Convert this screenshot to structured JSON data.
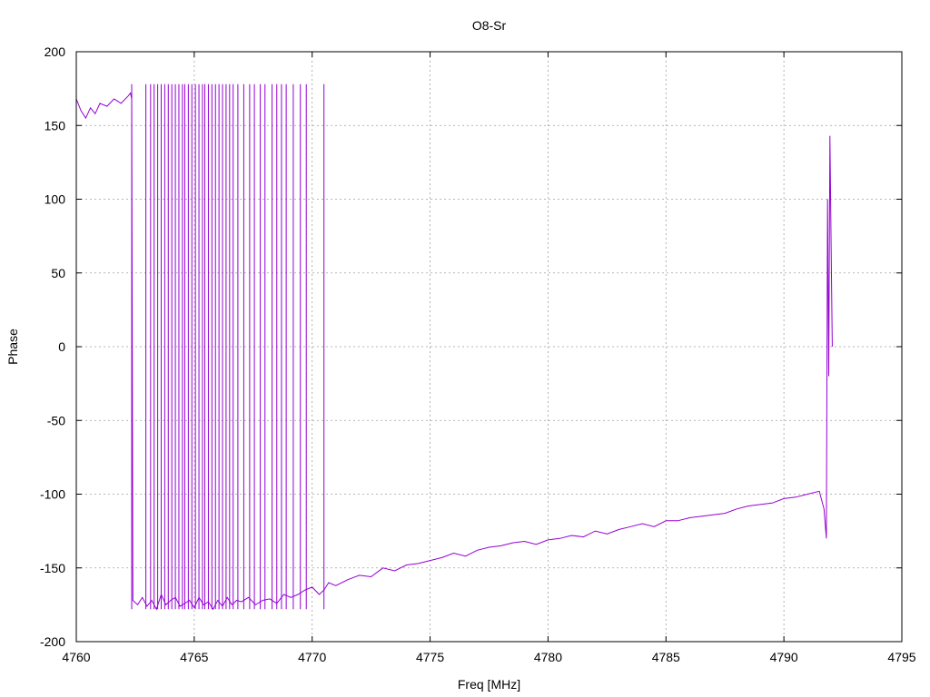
{
  "chart_data": {
    "type": "line",
    "title": "O8-Sr",
    "xlabel": "Freq [MHz]",
    "ylabel": "Phase",
    "xlim": [
      4760,
      4795
    ],
    "ylim": [
      -200,
      200
    ],
    "xticks": [
      4760,
      4765,
      4770,
      4775,
      4780,
      4785,
      4790,
      4795
    ],
    "yticks": [
      -200,
      -150,
      -100,
      -50,
      0,
      50,
      100,
      150,
      200
    ],
    "xtick_labels": [
      "4760",
      "4765",
      "4770",
      "4775",
      "4780",
      "4785",
      "4790",
      "4795"
    ],
    "ytick_labels": [
      "-200",
      "-150",
      "-100",
      "-50",
      "0",
      "50",
      "100",
      "150",
      "200"
    ],
    "grid": true,
    "series": [
      {
        "color": "#9400d3",
        "x": [
          4760.0,
          4760.2,
          4760.4,
          4760.6,
          4760.8,
          4761.0,
          4761.3,
          4761.6,
          4761.9,
          4762.2,
          4762.3,
          4762.35,
          4762.4,
          4762.6,
          4762.8,
          4763.0,
          4763.2,
          4763.4,
          4763.6,
          4763.8,
          4764.0,
          4764.2,
          4764.4,
          4764.6,
          4764.8,
          4765.0,
          4765.2,
          4765.4,
          4765.6,
          4765.8,
          4766.0,
          4766.2,
          4766.4,
          4766.6,
          4766.8,
          4767.0,
          4767.3,
          4767.6,
          4767.9,
          4768.2,
          4768.5,
          4768.8,
          4769.1,
          4769.4,
          4769.7,
          4770.0,
          4770.3,
          4770.5,
          4770.7,
          4771.0,
          4771.5,
          4772.0,
          4772.5,
          4773.0,
          4773.5,
          4774.0,
          4774.5,
          4775.0,
          4775.5,
          4776.0,
          4776.5,
          4777.0,
          4777.5,
          4778.0,
          4778.5,
          4779.0,
          4779.5,
          4780.0,
          4780.5,
          4781.0,
          4781.5,
          4782.0,
          4782.5,
          4783.0,
          4783.5,
          4784.0,
          4784.5,
          4785.0,
          4785.5,
          4786.0,
          4786.5,
          4787.0,
          4787.5,
          4788.0,
          4788.5,
          4789.0,
          4789.5,
          4790.0,
          4790.5,
          4791.0,
          4791.5,
          4791.7,
          4791.8,
          4791.85,
          4791.9,
          4791.95,
          4792.0,
          4792.05
        ],
        "y": [
          168,
          160,
          155,
          162,
          158,
          165,
          163,
          168,
          165,
          170,
          172,
          168,
          -172,
          -175,
          -170,
          -176,
          -172,
          -178,
          -168,
          -175,
          -172,
          -170,
          -176,
          -174,
          -172,
          -177,
          -170,
          -175,
          -173,
          -178,
          -172,
          -176,
          -170,
          -175,
          -172,
          -173,
          -170,
          -175,
          -172,
          -171,
          -174,
          -168,
          -170,
          -168,
          -165,
          -163,
          -168,
          -165,
          -160,
          -162,
          -158,
          -155,
          -156,
          -150,
          -152,
          -148,
          -147,
          -145,
          -143,
          -140,
          -142,
          -138,
          -136,
          -135,
          -133,
          -132,
          -134,
          -131,
          -130,
          -128,
          -129,
          -125,
          -127,
          -124,
          -122,
          -120,
          -122,
          -118,
          -118,
          -116,
          -115,
          -114,
          -113,
          -110,
          -108,
          -107,
          -106,
          -103,
          -102,
          -100,
          -98,
          -110,
          -130,
          100,
          -20,
          143,
          70,
          0
        ]
      }
    ],
    "phase_jumps_x": [
      4762.35,
      4762.95,
      4763.15,
      4763.3,
      4763.45,
      4763.6,
      4763.75,
      4763.9,
      4764.05,
      4764.2,
      4764.35,
      4764.5,
      4764.6,
      4764.75,
      4764.9,
      4765.05,
      4765.2,
      4765.35,
      4765.45,
      4765.6,
      4765.75,
      4765.9,
      4766.05,
      4766.2,
      4766.35,
      4766.5,
      4766.65,
      4766.85,
      4767.1,
      4767.35,
      4767.55,
      4767.8,
      4768.0,
      4768.3,
      4768.5,
      4768.7,
      4768.9,
      4769.2,
      4769.5,
      4769.75,
      4770.5
    ]
  }
}
